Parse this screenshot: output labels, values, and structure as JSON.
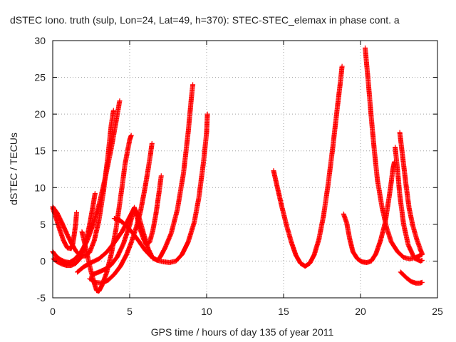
{
  "chart_data": {
    "type": "scatter",
    "title": "dSTEC Iono. truth (sulp, Lon=24, Lat=49, h=370): STEC-STEC_elemax in phase cont. a",
    "xlabel": "GPS time / hours of day 135 of year 2011",
    "ylabel": "dSTEC  / TECUs",
    "xlim": [
      0,
      25
    ],
    "ylim": [
      -5,
      30
    ],
    "xticks": [
      0,
      5,
      10,
      15,
      20,
      25
    ],
    "yticks": [
      -5,
      0,
      5,
      10,
      15,
      20,
      25,
      30
    ],
    "x_tick_labels": [
      "0",
      "5",
      "10",
      "15",
      "20",
      "25"
    ],
    "y_tick_labels": [
      "-5",
      "0",
      "5",
      "10",
      "15",
      "20",
      "25",
      "30"
    ],
    "grid": true,
    "marker": "+",
    "color": "#ff0000",
    "series": [
      {
        "points": [
          [
            0,
            7.4
          ],
          [
            0.3,
            6.5
          ],
          [
            0.6,
            5.2
          ],
          [
            0.9,
            3.8
          ],
          [
            1.2,
            2.5
          ],
          [
            1.5,
            1.4
          ],
          [
            1.8,
            0.7
          ],
          [
            2.1,
            0.7
          ],
          [
            2.4,
            1.2
          ],
          [
            2.7,
            2.8
          ],
          [
            3.0,
            5.5
          ],
          [
            3.3,
            9.5
          ],
          [
            3.6,
            14.5
          ],
          [
            3.8,
            18.5
          ],
          [
            3.95,
            20.5
          ]
        ]
      },
      {
        "points": [
          [
            0,
            1.3
          ],
          [
            0.2,
            0.7
          ],
          [
            0.5,
            0.2
          ],
          [
            0.8,
            -0.1
          ],
          [
            1.1,
            -0.2
          ],
          [
            1.4,
            0.2
          ],
          [
            1.8,
            1.1
          ],
          [
            2.2,
            2.6
          ],
          [
            2.6,
            4.8
          ],
          [
            3.0,
            7.6
          ],
          [
            3.4,
            11.2
          ],
          [
            3.8,
            15.3
          ],
          [
            4.1,
            18.8
          ],
          [
            4.35,
            21.8
          ]
        ]
      },
      {
        "points": [
          [
            0,
            7.2
          ],
          [
            0.2,
            6.0
          ],
          [
            0.45,
            4.3
          ],
          [
            0.7,
            2.8
          ],
          [
            0.95,
            1.8
          ],
          [
            1.2,
            1.7
          ],
          [
            1.3,
            2.3
          ],
          [
            1.4,
            3.6
          ],
          [
            1.5,
            5.2
          ],
          [
            1.55,
            6.6
          ]
        ]
      },
      {
        "points": [
          [
            0.05,
            0.3
          ],
          [
            0.3,
            -0.1
          ],
          [
            0.6,
            -0.4
          ],
          [
            0.9,
            -0.6
          ],
          [
            1.2,
            -0.6
          ],
          [
            1.5,
            -0.3
          ],
          [
            1.8,
            0.4
          ],
          [
            2.0,
            1.5
          ],
          [
            2.2,
            3.0
          ],
          [
            2.4,
            5.0
          ],
          [
            2.6,
            7.3
          ],
          [
            2.75,
            9.2
          ]
        ]
      },
      {
        "points": [
          [
            1.9,
            4.0
          ],
          [
            2.1,
            2.2
          ],
          [
            2.3,
            0.3
          ],
          [
            2.5,
            -1.5
          ],
          [
            2.7,
            -3.0
          ],
          [
            2.85,
            -4.0
          ],
          [
            3.0,
            -4.1
          ],
          [
            3.2,
            -3.3
          ],
          [
            3.5,
            -1.6
          ],
          [
            3.8,
            0.9
          ],
          [
            4.1,
            4.2
          ],
          [
            4.4,
            8.5
          ],
          [
            4.7,
            13.2
          ],
          [
            5.0,
            16.5
          ],
          [
            5.1,
            17.1
          ]
        ]
      },
      {
        "points": [
          [
            1.6,
            -1.5
          ],
          [
            2.0,
            -0.8
          ],
          [
            2.5,
            -0.2
          ],
          [
            3.0,
            0.3
          ],
          [
            3.5,
            1.2
          ],
          [
            4.0,
            2.5
          ],
          [
            4.5,
            4.0
          ],
          [
            5.0,
            6.0
          ],
          [
            5.3,
            7.2
          ],
          [
            5.6,
            6.0
          ],
          [
            5.9,
            3.8
          ],
          [
            6.2,
            1.7
          ],
          [
            6.5,
            0.4
          ],
          [
            6.8,
            0.1
          ],
          [
            7.0,
            0.6
          ],
          [
            7.3,
            1.8
          ],
          [
            7.7,
            3.8
          ],
          [
            8.1,
            7.0
          ],
          [
            8.5,
            12.0
          ],
          [
            8.8,
            17.5
          ],
          [
            9.0,
            22.0
          ],
          [
            9.1,
            24.0
          ]
        ]
      },
      {
        "points": [
          [
            2.4,
            -2.4
          ],
          [
            2.8,
            -2.9
          ],
          [
            3.2,
            -3.0
          ],
          [
            3.6,
            -2.6
          ],
          [
            4.0,
            -1.8
          ],
          [
            4.4,
            -0.7
          ],
          [
            4.8,
            0.9
          ],
          [
            5.1,
            2.5
          ],
          [
            5.4,
            4.4
          ],
          [
            5.7,
            6.7
          ],
          [
            6.0,
            10.0
          ],
          [
            6.2,
            12.5
          ],
          [
            6.35,
            14.5
          ],
          [
            6.45,
            16.0
          ]
        ]
      },
      {
        "points": [
          [
            2.6,
            -1.8
          ],
          [
            3.0,
            -1.5
          ],
          [
            3.4,
            -1.1
          ],
          [
            3.8,
            -0.5
          ],
          [
            4.2,
            0.6
          ],
          [
            4.6,
            2.4
          ],
          [
            5.0,
            4.9
          ],
          [
            5.3,
            7.3
          ],
          [
            5.5,
            5.8
          ],
          [
            5.7,
            4.2
          ],
          [
            5.9,
            3.0
          ],
          [
            6.1,
            2.2
          ],
          [
            6.3,
            2.6
          ],
          [
            6.5,
            4.1
          ],
          [
            6.7,
            6.3
          ],
          [
            6.9,
            9.2
          ],
          [
            7.05,
            11.6
          ]
        ]
      },
      {
        "points": [
          [
            4.0,
            5.8
          ],
          [
            4.4,
            5.5
          ],
          [
            4.8,
            4.8
          ],
          [
            5.2,
            3.8
          ],
          [
            5.6,
            2.7
          ],
          [
            6.0,
            1.5
          ],
          [
            6.4,
            0.6
          ],
          [
            6.8,
            0.1
          ],
          [
            7.2,
            -0.1
          ],
          [
            7.6,
            -0.2
          ],
          [
            8.0,
            0.0
          ],
          [
            8.4,
            0.9
          ],
          [
            8.8,
            2.6
          ],
          [
            9.2,
            5.3
          ],
          [
            9.5,
            8.7
          ],
          [
            9.8,
            13.5
          ],
          [
            10.0,
            17.5
          ],
          [
            10.05,
            20.0
          ]
        ]
      },
      {
        "points": [
          [
            14.35,
            12.3
          ],
          [
            14.6,
            10.0
          ],
          [
            14.9,
            7.3
          ],
          [
            15.2,
            4.8
          ],
          [
            15.5,
            2.6
          ],
          [
            15.8,
            0.8
          ],
          [
            16.1,
            -0.3
          ],
          [
            16.4,
            -0.7
          ],
          [
            16.7,
            -0.3
          ],
          [
            17.0,
            0.9
          ],
          [
            17.3,
            3.0
          ],
          [
            17.6,
            6.2
          ],
          [
            17.9,
            10.5
          ],
          [
            18.2,
            15.5
          ],
          [
            18.5,
            21.0
          ],
          [
            18.7,
            24.5
          ],
          [
            18.8,
            26.5
          ]
        ]
      },
      {
        "points": [
          [
            18.9,
            6.4
          ],
          [
            19.1,
            5.2
          ],
          [
            19.3,
            3.0
          ],
          [
            19.5,
            1.3
          ],
          [
            19.8,
            0.3
          ],
          [
            20.1,
            -0.1
          ],
          [
            20.4,
            -0.2
          ],
          [
            20.7,
            0.0
          ],
          [
            21.0,
            1.0
          ],
          [
            21.3,
            2.8
          ],
          [
            21.6,
            5.2
          ],
          [
            21.85,
            8.6
          ],
          [
            22.0,
            10.8
          ],
          [
            22.1,
            12.5
          ],
          [
            22.2,
            13.5
          ]
        ]
      },
      {
        "points": [
          [
            20.3,
            29.0
          ],
          [
            20.5,
            24.5
          ],
          [
            20.7,
            19.5
          ],
          [
            20.9,
            15.0
          ],
          [
            21.1,
            11.0
          ],
          [
            21.4,
            7.3
          ],
          [
            21.7,
            4.5
          ],
          [
            22.0,
            2.6
          ],
          [
            22.4,
            1.3
          ],
          [
            22.8,
            0.5
          ],
          [
            23.2,
            0.3
          ],
          [
            23.6,
            0.5
          ],
          [
            24.0,
            0.9
          ]
        ]
      },
      {
        "points": [
          [
            22.25,
            15.5
          ],
          [
            22.4,
            12.5
          ],
          [
            22.55,
            9.0
          ],
          [
            22.8,
            5.0
          ],
          [
            23.1,
            2.2
          ],
          [
            23.5,
            0.4
          ],
          [
            23.9,
            0.0
          ],
          [
            24.0,
            0.1
          ]
        ]
      },
      {
        "points": [
          [
            22.55,
            17.5
          ],
          [
            22.75,
            14.0
          ],
          [
            22.95,
            10.5
          ],
          [
            23.15,
            7.3
          ],
          [
            23.4,
            4.8
          ],
          [
            23.65,
            3.0
          ],
          [
            23.9,
            1.5
          ],
          [
            24.0,
            1.0
          ]
        ]
      },
      {
        "points": [
          [
            22.6,
            -1.5
          ],
          [
            23.0,
            -2.3
          ],
          [
            23.3,
            -2.8
          ],
          [
            23.6,
            -3.0
          ],
          [
            23.85,
            -3.0
          ],
          [
            24.0,
            -2.9
          ]
        ]
      }
    ]
  }
}
